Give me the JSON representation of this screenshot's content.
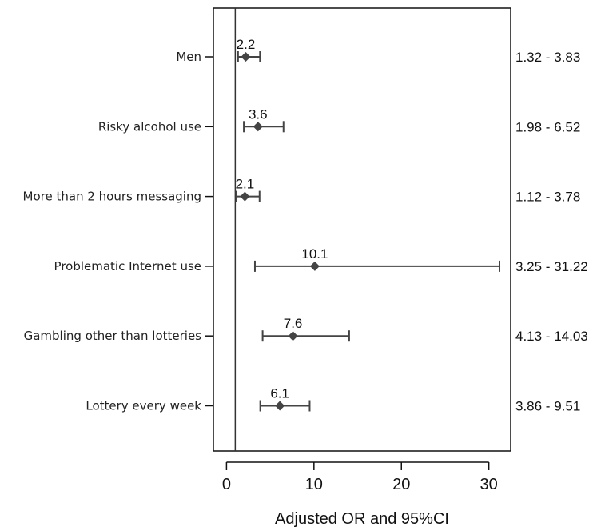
{
  "chart_data": {
    "type": "forest",
    "xlabel": "Adjusted OR and 95%CI",
    "xlim": [
      -1.5,
      32.5
    ],
    "xticks": [
      0,
      10,
      20,
      30
    ],
    "xtick_labels": [
      "0",
      "10",
      "20",
      "30"
    ],
    "reference_line": 1,
    "grid": false,
    "rows": [
      {
        "label": "Men",
        "or": 2.2,
        "or_label": "2.2",
        "ci_low": 1.32,
        "ci_high": 3.83,
        "ci_label": "1.32 - 3.83"
      },
      {
        "label": "Risky alcohol use",
        "or": 3.6,
        "or_label": "3.6",
        "ci_low": 1.98,
        "ci_high": 6.52,
        "ci_label": "1.98 - 6.52"
      },
      {
        "label": "More than 2 hours messaging",
        "or": 2.1,
        "or_label": "2.1",
        "ci_low": 1.12,
        "ci_high": 3.78,
        "ci_label": "1.12 - 3.78"
      },
      {
        "label": "Problematic Internet use",
        "or": 10.1,
        "or_label": "10.1",
        "ci_low": 3.25,
        "ci_high": 31.22,
        "ci_label": "3.25 - 31.22"
      },
      {
        "label": "Gambling other than lotteries",
        "or": 7.6,
        "or_label": "7.6",
        "ci_low": 4.13,
        "ci_high": 14.03,
        "ci_label": "4.13 - 14.03"
      },
      {
        "label": "Lottery every week",
        "or": 6.1,
        "or_label": "6.1",
        "ci_low": 3.86,
        "ci_high": 9.51,
        "ci_label": "3.86 - 9.51"
      }
    ]
  }
}
